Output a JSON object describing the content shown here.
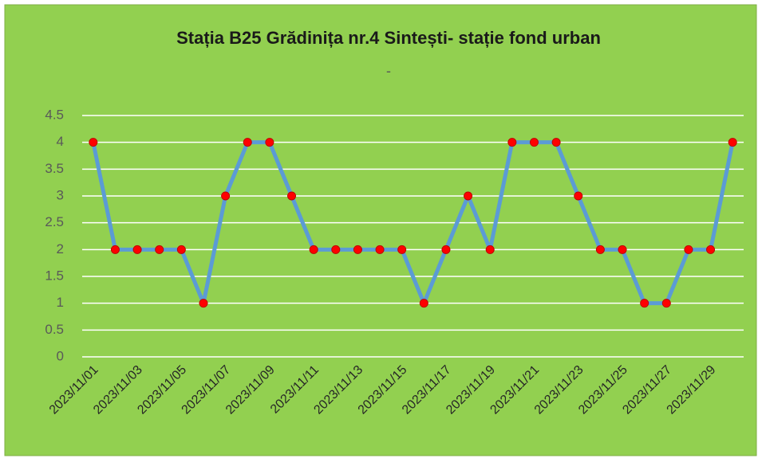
{
  "chart_data": {
    "type": "line",
    "title": "Stația B25 Grădinița nr.4  Sintești- stație fond urban",
    "subtitle": "-",
    "categories": [
      "2023/11/01",
      null,
      "2023/11/03",
      null,
      "2023/11/05",
      null,
      "2023/11/07",
      null,
      "2023/11/09",
      null,
      "2023/11/11",
      null,
      "2023/11/13",
      null,
      "2023/11/15",
      null,
      "2023/11/17",
      null,
      "2023/11/19",
      null,
      "2023/11/21",
      null,
      "2023/11/23",
      null,
      "2023/11/25",
      null,
      "2023/11/27",
      null,
      "2023/11/29",
      null
    ],
    "values": [
      4,
      2,
      2,
      2,
      2,
      1,
      3,
      4,
      4,
      3,
      2,
      2,
      2,
      2,
      2,
      1,
      2,
      3,
      2,
      4,
      4,
      4,
      3,
      2,
      2,
      1,
      1,
      2,
      2,
      4
    ],
    "color": "#5b9bd5",
    "marker_color": "#ff0000",
    "ylim": [
      0,
      4.5
    ],
    "yticks": [
      0,
      0.5,
      1,
      1.5,
      2,
      2.5,
      3,
      3.5,
      4,
      4.5
    ],
    "grid": true
  }
}
